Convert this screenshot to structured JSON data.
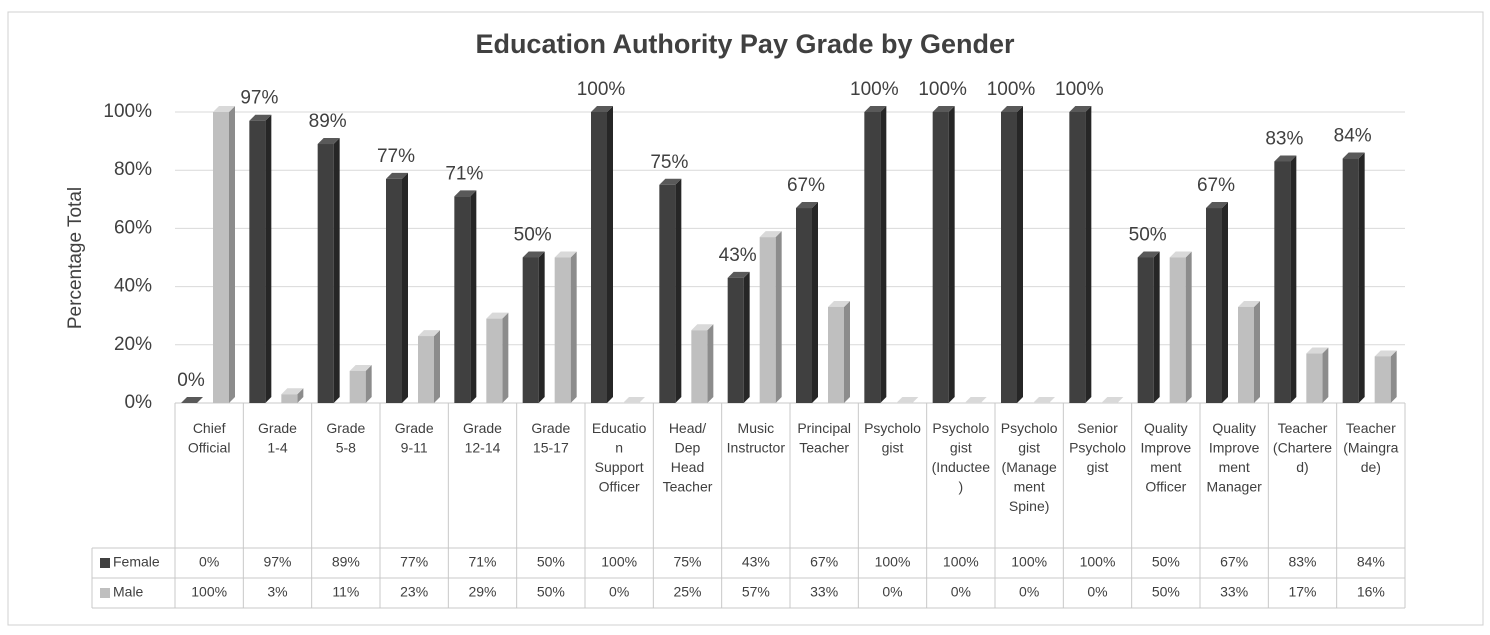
{
  "chart_data": {
    "type": "bar",
    "title": "Education Authority Pay Grade by Gender",
    "y_label": "Percentage Total",
    "categories": [
      "Chief Official",
      "Grade 1-4",
      "Grade 5-8",
      "Grade 9-11",
      "Grade 12-14",
      "Grade 15-17",
      "Education Support Officer",
      "Head/ Dep Head Teacher",
      "Music Instructor",
      "Principal Teacher",
      "Psychologist",
      "Psychologist (Inductee)",
      "Psychologist (Management Spine)",
      "Senior Psychologist",
      "Quality Improvement Officer",
      "Quality Improvement Manager",
      "Teacher (Chartered)",
      "Teacher (Maingrade)"
    ],
    "series": [
      {
        "name": "Female",
        "color": "#404040",
        "values": [
          0,
          97,
          89,
          77,
          71,
          50,
          100,
          75,
          43,
          67,
          100,
          100,
          100,
          100,
          50,
          67,
          83,
          84
        ],
        "value_labels": [
          "0%",
          "97%",
          "89%",
          "77%",
          "71%",
          "50%",
          "100%",
          "75%",
          "43%",
          "67%",
          "100%",
          "100%",
          "100%",
          "100%",
          "50%",
          "67%",
          "83%",
          "84%"
        ]
      },
      {
        "name": "Male",
        "color": "#bfbfbf",
        "values": [
          100,
          3,
          11,
          23,
          29,
          50,
          0,
          25,
          57,
          33,
          0,
          0,
          0,
          0,
          50,
          33,
          17,
          16
        ],
        "value_labels": [
          "100%",
          "3%",
          "11%",
          "23%",
          "29%",
          "50%",
          "0%",
          "25%",
          "57%",
          "33%",
          "0%",
          "0%",
          "0%",
          "0%",
          "50%",
          "33%",
          "17%",
          "16%"
        ]
      }
    ],
    "data_labels_series": [
      0
    ],
    "ylim": [
      0,
      100
    ],
    "yticks": [
      {
        "value": 0,
        "label": "0%"
      },
      {
        "value": 20,
        "label": "20%"
      },
      {
        "value": 40,
        "label": "40%"
      },
      {
        "value": 60,
        "label": "60%"
      },
      {
        "value": 80,
        "label": "80%"
      },
      {
        "value": 100,
        "label": "100%"
      }
    ],
    "grid": true
  }
}
